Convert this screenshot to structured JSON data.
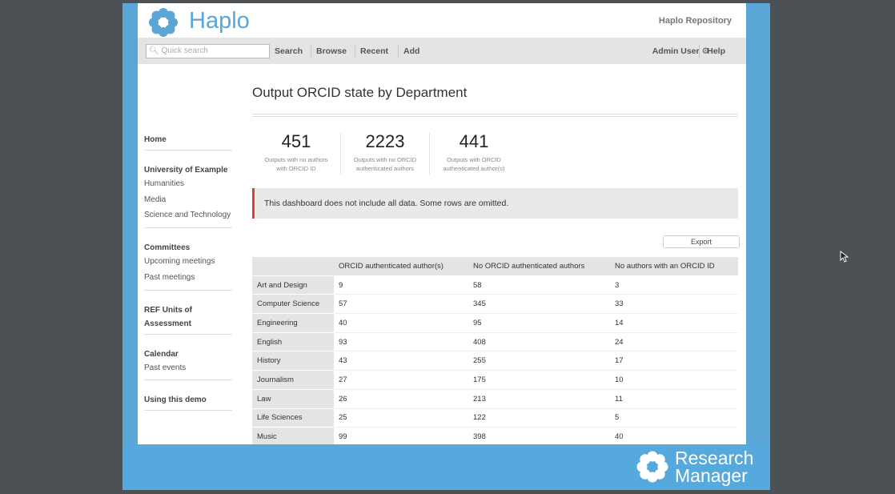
{
  "header": {
    "logo": "Haplo",
    "repository": "Haplo Repository"
  },
  "nav": {
    "search_placeholder": "Quick search",
    "links": [
      "Search",
      "Browse",
      "Recent",
      "Add"
    ],
    "user": "Admin User",
    "help": "Help"
  },
  "sidebar": [
    {
      "title": "Home",
      "items": []
    },
    {
      "title": "University of Example",
      "items": [
        "Humanities",
        "Media",
        "Science and Technology"
      ]
    },
    {
      "title": "Committees",
      "items": [
        "Upcoming meetings",
        "Past meetings"
      ]
    },
    {
      "title": "REF Units of Assessment",
      "items": []
    },
    {
      "title": "Calendar",
      "items": [
        "Past events"
      ]
    },
    {
      "title": "Using this demo",
      "items": []
    }
  ],
  "main": {
    "title": "Output ORCID state by Department",
    "stats": [
      {
        "value": 451,
        "label": "Outputs with no authors with ORCID ID"
      },
      {
        "value": 2223,
        "label": "Outputs with no ORCID authenticated authors"
      },
      {
        "value": 441,
        "label": "Outputs with ORCID authenticated author(s)"
      }
    ],
    "notice": "This dashboard does not include all data. Some rows are omitted.",
    "export": "Export",
    "table": {
      "columns": [
        "ORCID authenticated author(s)",
        "No ORCID authenticated authors",
        "No authors with an ORCID ID"
      ],
      "rows": [
        [
          "Art and Design",
          9,
          58,
          3
        ],
        [
          "Computer Science",
          57,
          345,
          33
        ],
        [
          "Engineering",
          40,
          95,
          14
        ],
        [
          "English",
          93,
          408,
          24
        ],
        [
          "History",
          43,
          255,
          17
        ],
        [
          "Journalism",
          27,
          175,
          10
        ],
        [
          "Law",
          26,
          213,
          11
        ],
        [
          "Life Sciences",
          25,
          122,
          5
        ],
        [
          "Music",
          99,
          398,
          40
        ]
      ]
    }
  },
  "footer": {
    "brand_lines": [
      "Research",
      "Manager"
    ]
  }
}
